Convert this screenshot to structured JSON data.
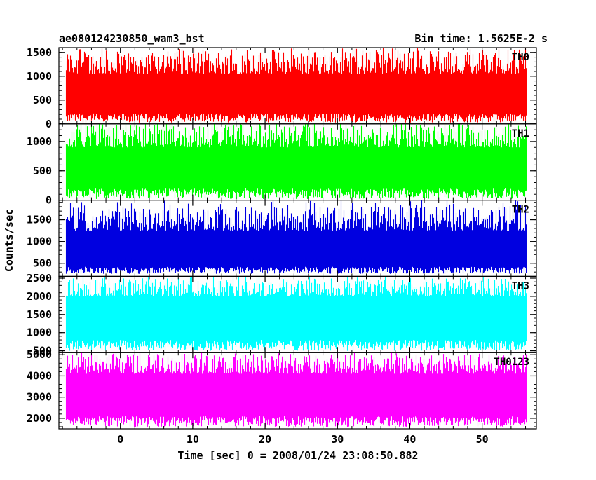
{
  "chart_data": {
    "type": "line",
    "title": "ae080124230850_wam3_bst",
    "bin_time": "Bin time: 1.5625E-2 s",
    "xlabel": "Time [sec] 0 = 2008/01/24 23:08:50.882",
    "ylabel": "Counts/sec",
    "xlim": [
      -8.5,
      57.5
    ],
    "data_x_range": [
      -7.5,
      56.0
    ],
    "x_ticks": [
      0,
      10,
      20,
      30,
      40,
      50
    ],
    "x_tick_labels": [
      "0",
      "10",
      "20",
      "30",
      "40",
      "50"
    ],
    "grid": false,
    "legend": "none",
    "panels": [
      {
        "name": "TH0",
        "color": "#ff0000",
        "ylim": [
          0,
          1600
        ],
        "yticks": [
          0,
          500,
          1000,
          1500
        ],
        "ytick_labels": [
          "0",
          "500",
          "1000",
          "1500"
        ],
        "low_range": [
          30,
          220
        ],
        "high_range": [
          1050,
          1550
        ]
      },
      {
        "name": "TH1",
        "color": "#00ff00",
        "ylim": [
          0,
          1300
        ],
        "yticks": [
          0,
          500,
          1000
        ],
        "ytick_labels": [
          "0",
          "500",
          "1000"
        ],
        "low_range": [
          20,
          200
        ],
        "high_range": [
          900,
          1300
        ]
      },
      {
        "name": "TH2",
        "color": "#0000e0",
        "ylim": [
          200,
          1950
        ],
        "yticks": [
          500,
          1000,
          1500
        ],
        "ytick_labels": [
          "500",
          "1000",
          "1500"
        ],
        "low_range": [
          260,
          420
        ],
        "high_range": [
          1250,
          1800
        ]
      },
      {
        "name": "TH3",
        "color": "#00ffff",
        "ylim": [
          450,
          2550
        ],
        "yticks": [
          500,
          1000,
          1500,
          2000,
          2500
        ],
        "ytick_labels": [
          "500",
          "1000",
          "1500",
          "2000",
          "2500"
        ],
        "low_range": [
          500,
          800
        ],
        "high_range": [
          2000,
          2500
        ]
      },
      {
        "name": "TH0123",
        "color": "#ff00ff",
        "ylim": [
          1500,
          5100
        ],
        "yticks": [
          2000,
          3000,
          4000,
          5000
        ],
        "ytick_labels": [
          "2000",
          "3000",
          "4000",
          "5000"
        ],
        "low_range": [
          1600,
          2100
        ],
        "high_range": [
          4100,
          5000
        ]
      }
    ]
  }
}
